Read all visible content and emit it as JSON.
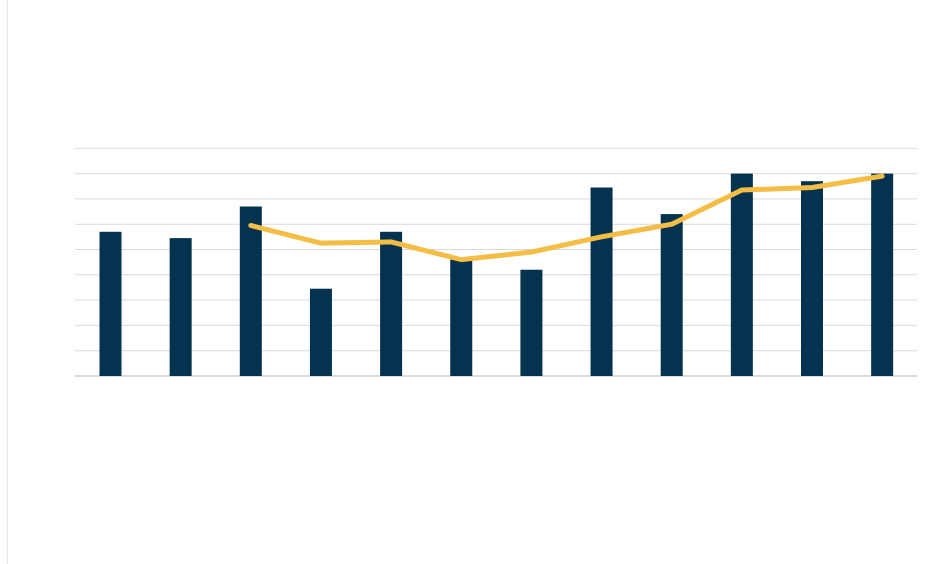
{
  "chart_data": {
    "type": "bar",
    "title": "",
    "xlabel": "",
    "ylabel": "",
    "ylim": [
      0,
      9
    ],
    "grid": true,
    "legend": "none",
    "categories": [
      "",
      "",
      "",
      "",
      "",
      "",
      "",
      "",
      "",
      "",
      "",
      ""
    ],
    "series": [
      {
        "type": "bar",
        "color": "#04324f",
        "values": [
          5.7,
          5.45,
          6.7,
          3.45,
          5.7,
          4.6,
          4.2,
          7.45,
          6.4,
          8.0,
          7.7,
          8.0
        ]
      },
      {
        "type": "line",
        "color": "#f3bd46",
        "values": [
          null,
          null,
          5.95,
          5.25,
          5.3,
          4.6,
          4.9,
          5.5,
          6.0,
          7.35,
          7.45,
          7.9
        ]
      }
    ]
  }
}
